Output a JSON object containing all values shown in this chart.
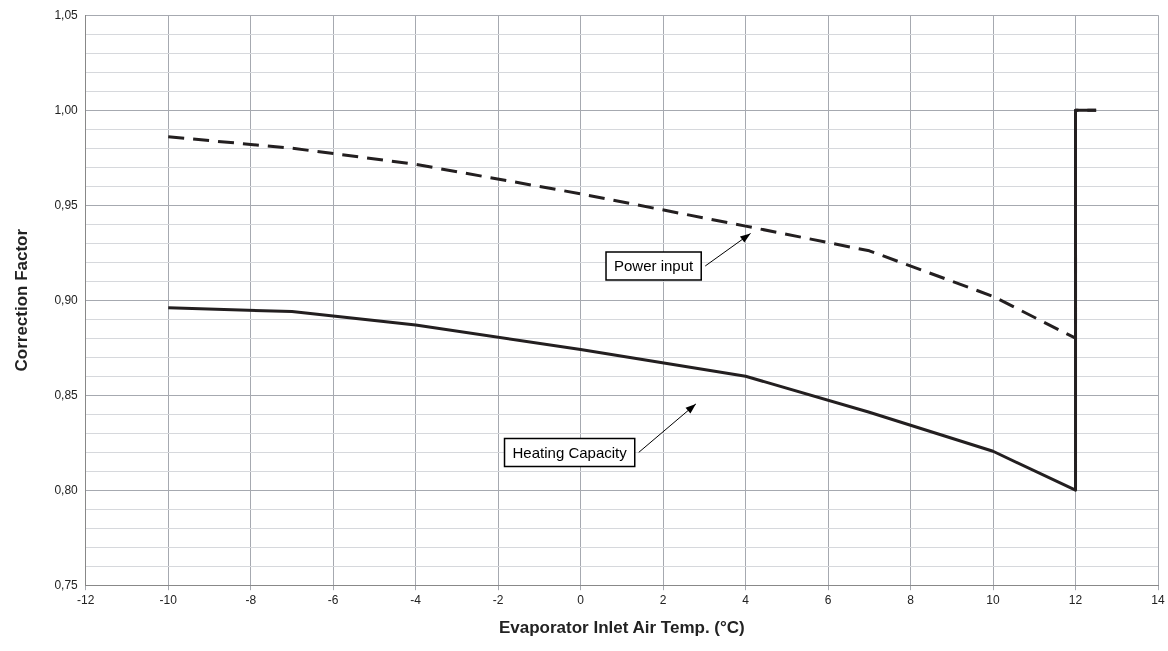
{
  "chart_data": {
    "type": "line",
    "xlabel": "Evaporator Inlet Air Temp. (°C)",
    "ylabel": "Correction Factor",
    "xlim": [
      -12,
      14
    ],
    "xticks": [
      -12,
      -10,
      -8,
      -6,
      -4,
      -2,
      0,
      2,
      4,
      6,
      8,
      10,
      12,
      14
    ],
    "ylim": [
      0.75,
      1.05
    ],
    "yticks": [
      {
        "value": 0.75,
        "label": "0,75"
      },
      {
        "value": 0.76,
        "label": null
      },
      {
        "value": 0.77,
        "label": null
      },
      {
        "value": 0.78,
        "label": null
      },
      {
        "value": 0.79,
        "label": null
      },
      {
        "value": 0.8,
        "label": "0,80"
      },
      {
        "value": 0.81,
        "label": null
      },
      {
        "value": 0.82,
        "label": null
      },
      {
        "value": 0.83,
        "label": null
      },
      {
        "value": 0.84,
        "label": null
      },
      {
        "value": 0.85,
        "label": "0,85"
      },
      {
        "value": 0.86,
        "label": null
      },
      {
        "value": 0.87,
        "label": null
      },
      {
        "value": 0.88,
        "label": null
      },
      {
        "value": 0.89,
        "label": null
      },
      {
        "value": 0.9,
        "label": "0,90"
      },
      {
        "value": 0.91,
        "label": null
      },
      {
        "value": 0.92,
        "label": null
      },
      {
        "value": 0.93,
        "label": null
      },
      {
        "value": 0.94,
        "label": null
      },
      {
        "value": 0.95,
        "label": "0,95"
      },
      {
        "value": 0.96,
        "label": null
      },
      {
        "value": 0.97,
        "label": null
      },
      {
        "value": 0.98,
        "label": null
      },
      {
        "value": 0.99,
        "label": null
      },
      {
        "value": 1.0,
        "label": "1,00"
      },
      {
        "value": 1.01,
        "label": null
      },
      {
        "value": 1.02,
        "label": null
      },
      {
        "value": 1.03,
        "label": null
      },
      {
        "value": 1.04,
        "label": null
      },
      {
        "value": 1.05,
        "label": "1,05"
      }
    ],
    "grid": true,
    "legend": false,
    "marker": "none",
    "series": [
      {
        "color": "#231f20",
        "line_style": "dashed",
        "x": [
          -10,
          -7,
          -4,
          0,
          4,
          7,
          10,
          12,
          12,
          12.5
        ],
        "values": [
          0.986,
          0.98,
          0.9715,
          0.956,
          0.939,
          0.926,
          0.902,
          0.88,
          1.0,
          1.0
        ]
      },
      {
        "color": "#231f20",
        "line_style": "solid",
        "x": [
          -10,
          -7,
          -4,
          0,
          4,
          7,
          10,
          12,
          12,
          12.5
        ],
        "values": [
          0.896,
          0.894,
          0.887,
          0.874,
          0.86,
          0.841,
          0.8205,
          0.8,
          1.0,
          1.0
        ]
      }
    ],
    "annotations": [
      "Power input",
      "Heating Capacity"
    ]
  }
}
